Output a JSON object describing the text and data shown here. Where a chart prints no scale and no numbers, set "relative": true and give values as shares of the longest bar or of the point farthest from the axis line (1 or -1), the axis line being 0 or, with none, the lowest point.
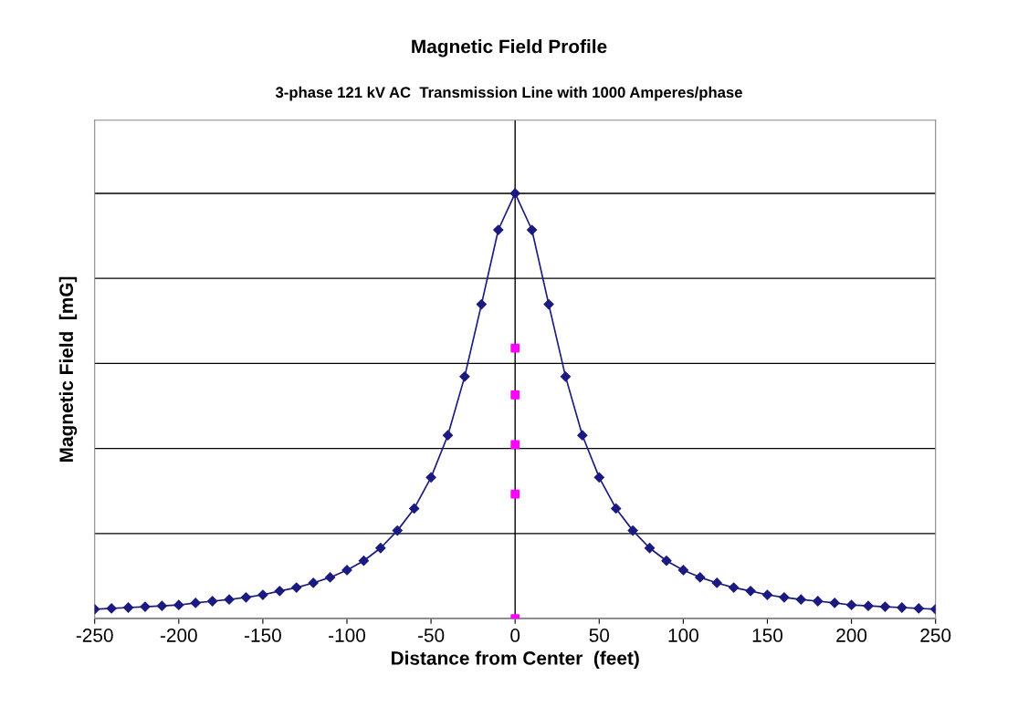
{
  "chart_data": {
    "type": "line",
    "title": "Magnetic Field Profile",
    "subtitle": "3-phase 121 kV AC  Transmission Line with 1000 Amperes/phase",
    "xlabel": "Distance from Center  (feet)",
    "ylabel": "Magnetic Field  [mG]",
    "relative": true,
    "xlim": [
      -250,
      250
    ],
    "xticks": [
      -250,
      -200,
      -150,
      -100,
      -50,
      0,
      50,
      100,
      150,
      200,
      250
    ],
    "grid": "y",
    "tick_labels": "x",
    "legend": false,
    "ref_lines": [
      {
        "axis": "x",
        "value": 0,
        "color": "#000000",
        "line_style": "solid"
      }
    ],
    "series": [
      {
        "marker": "diamond",
        "line_style": "solid",
        "color": "#1a1a80",
        "x": [
          -250,
          -240,
          -230,
          -220,
          -210,
          -200,
          -190,
          -180,
          -170,
          -160,
          -150,
          -140,
          -130,
          -120,
          -110,
          -100,
          -90,
          -80,
          -70,
          -60,
          -50,
          -40,
          -30,
          -20,
          -10,
          0,
          10,
          20,
          30,
          40,
          50,
          60,
          70,
          80,
          90,
          100,
          110,
          120,
          130,
          140,
          150,
          160,
          170,
          180,
          190,
          200,
          210,
          220,
          230,
          240,
          250
        ],
        "values": [
          0.022,
          0.024,
          0.026,
          0.028,
          0.03,
          0.032,
          0.037,
          0.041,
          0.045,
          0.05,
          0.056,
          0.065,
          0.073,
          0.084,
          0.097,
          0.114,
          0.136,
          0.166,
          0.207,
          0.259,
          0.332,
          0.431,
          0.569,
          0.739,
          0.914,
          1.0,
          0.914,
          0.739,
          0.569,
          0.431,
          0.332,
          0.259,
          0.207,
          0.166,
          0.136,
          0.114,
          0.097,
          0.084,
          0.073,
          0.065,
          0.056,
          0.05,
          0.045,
          0.041,
          0.037,
          0.032,
          0.03,
          0.028,
          0.026,
          0.024,
          0.022
        ]
      },
      {
        "type": "scatter",
        "marker": "square",
        "color": "#ff00ff",
        "x": [
          0,
          0,
          0,
          0,
          0
        ],
        "values": [
          0.636,
          0.526,
          0.409,
          0.293,
          0.0
        ]
      }
    ]
  }
}
